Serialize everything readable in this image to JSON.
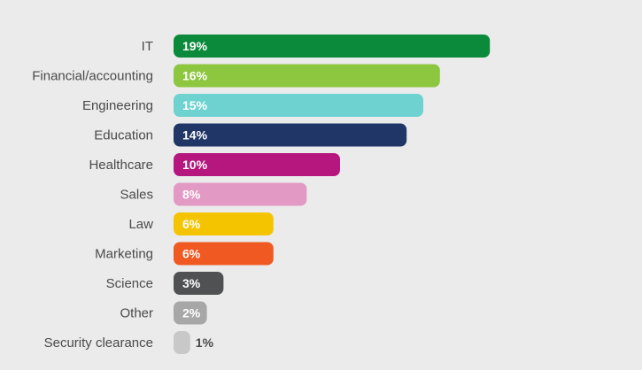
{
  "chart_data": {
    "type": "bar",
    "orientation": "horizontal",
    "categories": [
      "IT",
      "Financial/accounting",
      "Engineering",
      "Education",
      "Healthcare",
      "Sales",
      "Law",
      "Marketing",
      "Science",
      "Other",
      "Security clearance"
    ],
    "values": [
      19,
      16,
      15,
      14,
      10,
      8,
      6,
      6,
      3,
      2,
      1
    ],
    "value_labels": [
      "19%",
      "16%",
      "15%",
      "14%",
      "10%",
      "8%",
      "6%",
      "6%",
      "3%",
      "2%",
      "1%"
    ],
    "colors": [
      "#0a8a3a",
      "#8dc63f",
      "#6ed3d0",
      "#1f3666",
      "#b5177f",
      "#e29ac4",
      "#f5c400",
      "#f05a22",
      "#4f5152",
      "#a7a7a7",
      "#c8c8c8"
    ],
    "label_colors": [
      "#ffffff",
      "#ffffff",
      "#ffffff",
      "#ffffff",
      "#ffffff",
      "#ffffff",
      "#ffffff",
      "#ffffff",
      "#ffffff",
      "#ffffff",
      "#4a4a4a"
    ],
    "grid": false,
    "legend": "none",
    "title": "",
    "xlabel": "",
    "ylabel": ""
  }
}
